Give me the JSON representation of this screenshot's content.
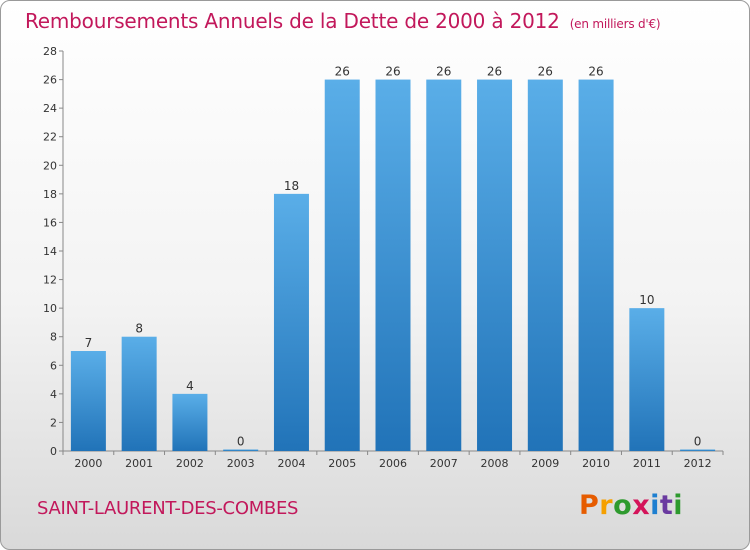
{
  "header": {
    "title": "Remboursements Annuels de la Dette de 2000 à 2012",
    "unit": "(en milliers d'€)"
  },
  "footer": {
    "city": "SAINT-LAURENT-DES-COMBES",
    "logo_letters": [
      "P",
      "r",
      "o",
      "x",
      "i",
      "t",
      "i"
    ],
    "logo_colors": [
      "#e65c00",
      "#f5a000",
      "#2e9a2e",
      "#d4145a",
      "#1e7fd0",
      "#6a3aa0",
      "#2e9a2e"
    ]
  },
  "chart_data": {
    "type": "bar",
    "title": "Remboursements Annuels de la Dette de 2000 à 2012",
    "categories": [
      "2000",
      "2001",
      "2002",
      "2003",
      "2004",
      "2005",
      "2006",
      "2007",
      "2008",
      "2009",
      "2010",
      "2011",
      "2012"
    ],
    "values": [
      7,
      8,
      4,
      0,
      18,
      26,
      26,
      26,
      26,
      26,
      26,
      10,
      0
    ],
    "data_labels": [
      "7",
      "8",
      "4",
      "0",
      "18",
      "26",
      "26",
      "26",
      "26",
      "26",
      "26",
      "10",
      "0"
    ],
    "ylim": [
      0,
      28
    ],
    "yticks": [
      0,
      2,
      4,
      6,
      8,
      10,
      12,
      14,
      16,
      18,
      20,
      22,
      24,
      26,
      28
    ],
    "ytick_labels": [
      "0",
      "2",
      "4",
      "6",
      "8",
      "10",
      "12",
      "14",
      "16",
      "18",
      "20",
      "22",
      "24",
      "26",
      "28"
    ],
    "grid": false,
    "colors": {
      "bar_light": "#5aaee8",
      "bar_dark": "#2173b8",
      "axis": "#888888",
      "label": "#333333"
    }
  }
}
